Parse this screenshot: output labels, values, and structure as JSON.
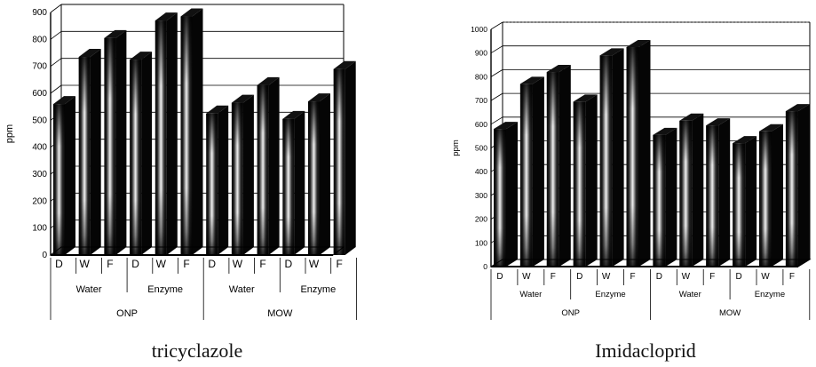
{
  "charts": [
    {
      "caption": "tricyclazole",
      "chart_data": {
        "type": "bar",
        "ylabel": "ppm",
        "ylim": [
          0,
          900
        ],
        "yticks": [
          0,
          100,
          200,
          300,
          400,
          500,
          600,
          700,
          800,
          900
        ],
        "categories": [
          "D",
          "W",
          "F",
          "D",
          "W",
          "F",
          "D",
          "W",
          "F",
          "D",
          "W",
          "F"
        ],
        "values": [
          560,
          735,
          805,
          725,
          870,
          885,
          525,
          565,
          630,
          505,
          570,
          690
        ],
        "group_level1": [
          "Water",
          "Enzyme",
          "Water",
          "Enzyme"
        ],
        "group_level2": [
          "ONP",
          "MOW"
        ],
        "grid": true,
        "colors": {
          "bar_dark": "#0c0c0c",
          "bar_light": "#f4f4f4"
        }
      }
    },
    {
      "caption": "Imidacloprid",
      "chart_data": {
        "type": "bar",
        "ylabel": "ppm",
        "ylim": [
          0,
          1000
        ],
        "yticks": [
          0,
          100,
          200,
          300,
          400,
          500,
          600,
          700,
          800,
          900,
          1000
        ],
        "categories": [
          "D",
          "W",
          "F",
          "D",
          "W",
          "F",
          "D",
          "W",
          "F",
          "D",
          "W",
          "F"
        ],
        "values": [
          580,
          770,
          820,
          695,
          890,
          925,
          555,
          615,
          595,
          520,
          570,
          655
        ],
        "group_level1": [
          "Water",
          "Enzyme",
          "Water",
          "Enzyme"
        ],
        "group_level2": [
          "ONP",
          "MOW"
        ],
        "grid": true,
        "colors": {
          "bar_dark": "#0c0c0c",
          "bar_light": "#f4f4f4"
        }
      }
    }
  ]
}
